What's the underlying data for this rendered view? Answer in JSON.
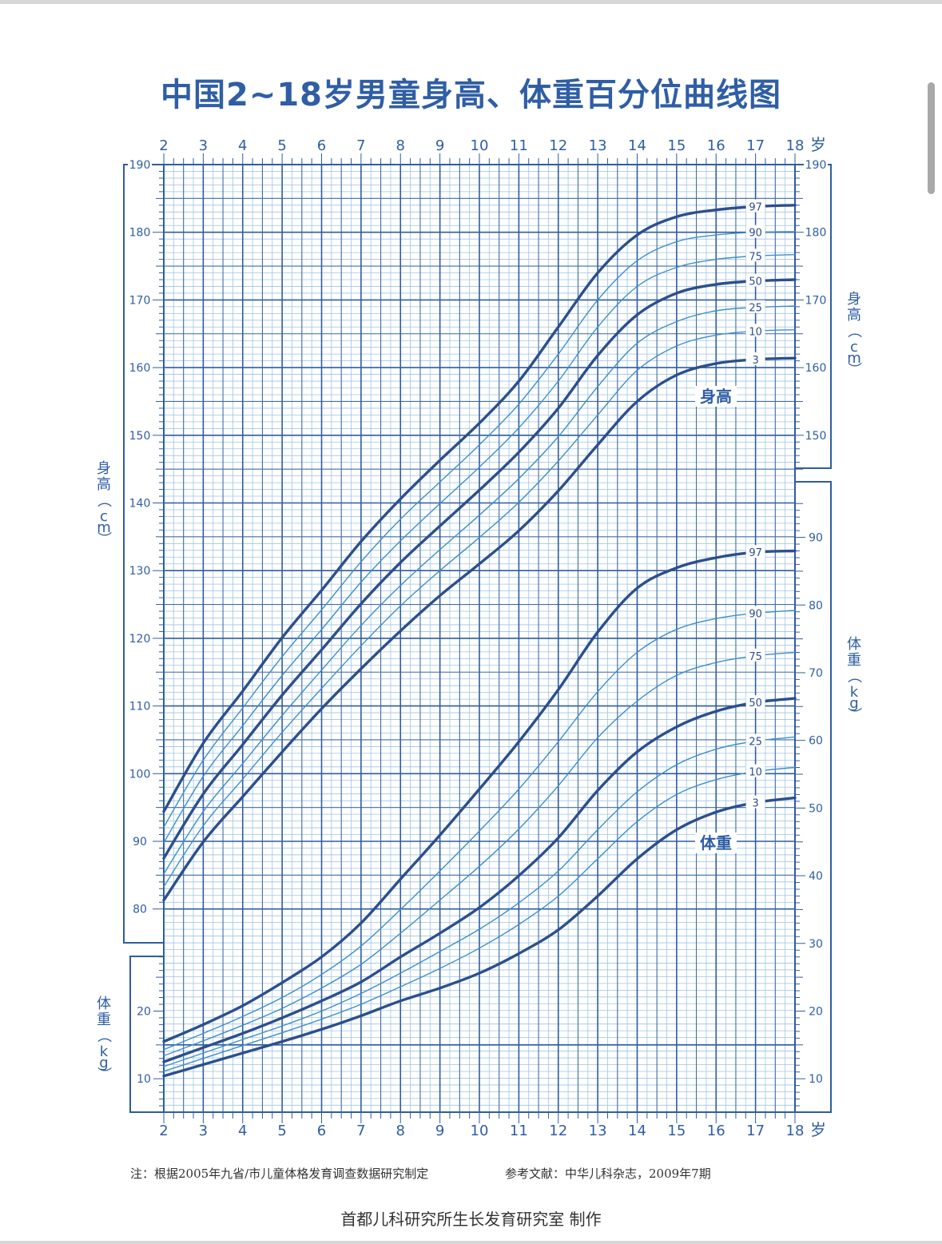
{
  "title": "中国2~18岁男童身高、体重百分位曲线图",
  "footer": {
    "note": "注：根据2005年九省/市儿童体格发育调查数据研究制定",
    "reference": "参考文献：中华儿科杂志，2009年7期",
    "maker": "首都儿科研究所生长发育研究室  制作"
  },
  "colors": {
    "grid_fine": "#9fc4e3",
    "grid_major": "#2e5da0",
    "curve_major": "#2c4f8d",
    "curve_minor": "#3d8fcb",
    "text": "#2f5ea4"
  },
  "chart_data": {
    "type": "line",
    "title": "中国2~18岁男童身高、体重百分位曲线图",
    "x_unit": "岁",
    "x_ticks": [
      "2",
      "3",
      "4",
      "5",
      "6",
      "7",
      "8",
      "9",
      "10",
      "11",
      "12",
      "13",
      "14",
      "15",
      "16",
      "17",
      "18"
    ],
    "xlim": [
      2,
      18
    ],
    "height_axis": {
      "label": "身高（cm）",
      "range": [
        80,
        190
      ],
      "ticks_left": [
        "80",
        "90",
        "100",
        "110",
        "120",
        "130",
        "140",
        "150",
        "160",
        "170",
        "180",
        "190"
      ],
      "ticks_right": [
        "150",
        "160",
        "170",
        "180",
        "190"
      ]
    },
    "weight_axis": {
      "label": "体重（kg）",
      "range": [
        5,
        95
      ],
      "ticks_left": [
        "10",
        "20"
      ],
      "ticks_right": [
        "10",
        "20",
        "30",
        "40",
        "50",
        "60",
        "70",
        "80",
        "90"
      ]
    },
    "group_labels": {
      "height": "身高",
      "weight": "体重"
    },
    "x": [
      2,
      3,
      4,
      5,
      6,
      7,
      8,
      9,
      10,
      11,
      12,
      13,
      14,
      15,
      16,
      17,
      18
    ],
    "height_series": [
      {
        "name": "97",
        "values": [
          94.4,
          104.5,
          112.2,
          120.1,
          127.1,
          134.3,
          140.6,
          146.3,
          151.8,
          158.0,
          166.0,
          174.0,
          179.6,
          182.3,
          183.3,
          183.8,
          184.0
        ]
      },
      {
        "name": "90",
        "values": [
          92.1,
          102.0,
          109.7,
          117.3,
          124.2,
          131.3,
          137.6,
          143.1,
          148.6,
          154.6,
          162.0,
          170.0,
          175.8,
          178.6,
          179.6,
          180.0,
          180.1
        ]
      },
      {
        "name": "75",
        "values": [
          89.8,
          99.6,
          107.1,
          114.5,
          121.3,
          128.3,
          134.4,
          139.9,
          145.3,
          151.1,
          158.0,
          166.0,
          172.0,
          174.8,
          176.0,
          176.5,
          176.7
        ]
      },
      {
        "name": "50",
        "values": [
          87.5,
          97.0,
          104.3,
          111.6,
          118.3,
          125.1,
          131.2,
          136.6,
          141.9,
          147.5,
          154.0,
          161.8,
          167.8,
          171.0,
          172.3,
          172.8,
          173.0
        ]
      },
      {
        "name": "25",
        "values": [
          85.2,
          94.4,
          101.5,
          108.6,
          115.3,
          121.9,
          127.8,
          133.1,
          138.2,
          143.6,
          149.8,
          157.2,
          163.6,
          166.8,
          168.4,
          168.9,
          169.1
        ]
      },
      {
        "name": "10",
        "values": [
          83.3,
          92.3,
          99.2,
          106.1,
          112.6,
          118.9,
          124.8,
          130.0,
          134.9,
          140.1,
          146.2,
          153.0,
          159.6,
          163.2,
          164.8,
          165.4,
          165.6
        ]
      },
      {
        "name": "3",
        "values": [
          81.3,
          89.9,
          96.6,
          103.2,
          109.6,
          115.5,
          121.1,
          126.3,
          131.0,
          135.9,
          141.8,
          148.6,
          155.0,
          158.9,
          160.6,
          161.2,
          161.4
        ]
      }
    ],
    "weight_series": [
      {
        "name": "97",
        "values": [
          15.5,
          18.0,
          20.8,
          24.2,
          28.0,
          33.0,
          39.5,
          46.0,
          52.8,
          59.8,
          67.5,
          76.0,
          82.5,
          85.5,
          87.0,
          87.8,
          88.0
        ]
      },
      {
        "name": "90",
        "values": [
          14.3,
          16.7,
          19.2,
          22.0,
          25.4,
          29.6,
          35.0,
          40.7,
          46.6,
          52.8,
          59.8,
          67.2,
          73.0,
          76.4,
          78.0,
          78.8,
          79.2
        ]
      },
      {
        "name": "75",
        "values": [
          13.4,
          15.6,
          17.9,
          20.4,
          23.4,
          26.9,
          31.5,
          36.4,
          41.4,
          46.9,
          53.3,
          60.4,
          65.8,
          69.6,
          71.5,
          72.5,
          73.0
        ]
      },
      {
        "name": "50",
        "values": [
          12.5,
          14.6,
          16.7,
          19.0,
          21.5,
          24.3,
          28.0,
          31.5,
          35.3,
          40.0,
          45.6,
          52.6,
          58.3,
          62.0,
          64.3,
          65.6,
          66.2
        ]
      },
      {
        "name": "25",
        "values": [
          11.8,
          13.8,
          15.8,
          17.8,
          20.0,
          22.6,
          25.6,
          28.8,
          32.1,
          36.0,
          40.7,
          46.8,
          52.4,
          56.4,
          58.7,
          59.9,
          60.5
        ]
      },
      {
        "name": "10",
        "values": [
          11.1,
          13.0,
          14.9,
          16.8,
          18.8,
          21.0,
          23.6,
          26.3,
          29.3,
          32.8,
          37.0,
          42.5,
          48.0,
          52.0,
          54.2,
          55.4,
          56.0
        ]
      },
      {
        "name": "3",
        "values": [
          10.4,
          12.1,
          13.8,
          15.5,
          17.3,
          19.3,
          21.5,
          23.4,
          25.6,
          28.5,
          32.0,
          37.0,
          42.5,
          46.8,
          49.4,
          50.8,
          51.5
        ]
      }
    ]
  }
}
